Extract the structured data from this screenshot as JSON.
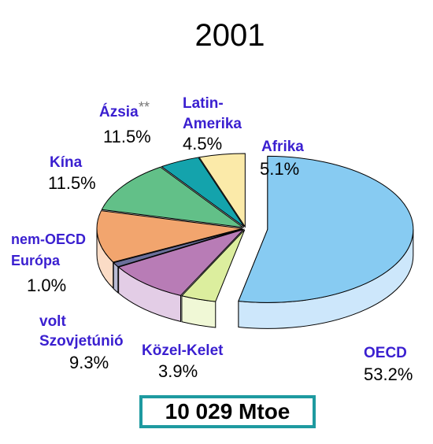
{
  "chart_data": {
    "type": "pie",
    "title": "2001",
    "slices": [
      {
        "name": "OECD",
        "value": 53.2,
        "label": "53.2%",
        "top": "#87cbf2",
        "side": "#cde7fb"
      },
      {
        "name": "Közel-Kelet",
        "value": 3.9,
        "label": "3.9%",
        "top": "#dcee9e",
        "side": "#f0f8d6"
      },
      {
        "name": "volt Szovjetúnió",
        "value": 9.3,
        "label": "9.3%",
        "top": "#b87cb6",
        "side": "#e3cde6"
      },
      {
        "name": "nem-OECD Európa",
        "value": 1.0,
        "label": "1.0%",
        "top": "#6a6f9a",
        "side": "#b9bbd4"
      },
      {
        "name": "Kína",
        "value": 11.5,
        "label": "11.5%",
        "top": "#f2a56e",
        "side": "#fbdcc6"
      },
      {
        "name": "Ázsia",
        "value": 11.5,
        "label": "11.5%",
        "top": "#62c088",
        "side": "#c3e8d2"
      },
      {
        "name": "Latin-Amerika",
        "value": 4.5,
        "label": "4.5%",
        "top": "#14a3ac",
        "side": "#9ed8dc"
      },
      {
        "name": "Afrika",
        "value": 5.1,
        "label": "5.1%",
        "top": "#fbeaa9",
        "side": "#fdf5d8"
      }
    ],
    "labels": {
      "oecd_name": "OECD",
      "oecd_val": "53.2%",
      "kozel_name": "Közel-Kelet",
      "kozel_val": "3.9%",
      "volt_name1": "volt",
      "volt_name2": "Szovjetúnió",
      "volt_val": "9.3%",
      "nem_name1": "nem-OECD",
      "nem_name2": "Európa",
      "nem_val": "1.0%",
      "kina_name": "Kína",
      "kina_val": "11.5%",
      "azsia_name": "Ázsia",
      "azsia_mark": "**",
      "azsia_val": "11.5%",
      "latin_name1": "Latin-",
      "latin_name2": "Amerika",
      "latin_val": "4.5%",
      "afrika_name": "Afrika",
      "afrika_val": "5.1%"
    },
    "total": "10 029 Mtoe"
  }
}
